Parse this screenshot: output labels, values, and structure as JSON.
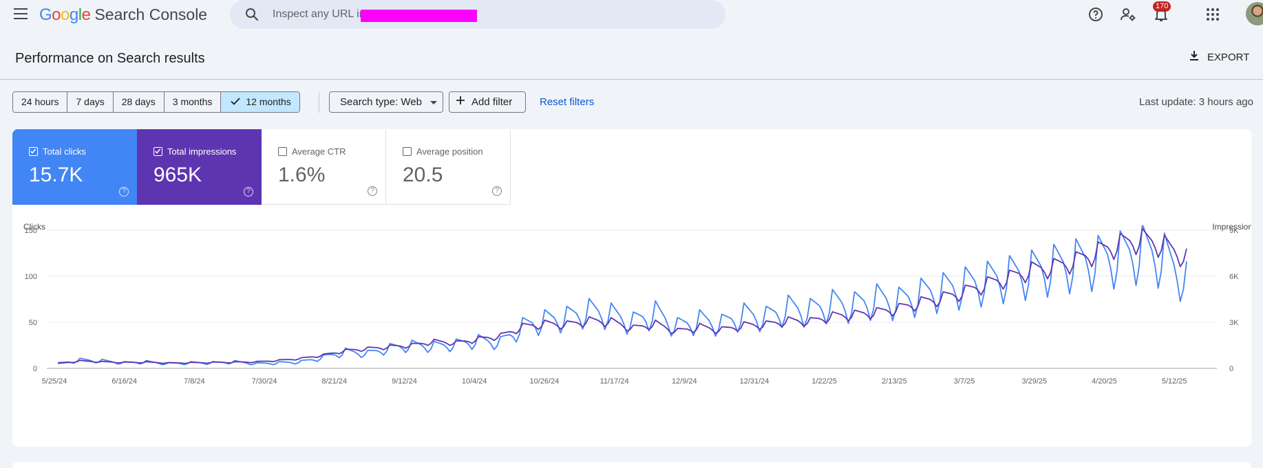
{
  "app": {
    "logo_google": "Google",
    "logo_product": "Search Console"
  },
  "search": {
    "placeholder": "Inspect any URL in"
  },
  "notifications": {
    "count": "170"
  },
  "icons": [
    "menu-icon",
    "search-icon",
    "help-icon",
    "manage-users-icon",
    "bell-icon",
    "apps-icon",
    "download-icon",
    "check-icon",
    "dropdown-arrow-icon",
    "plus-icon"
  ],
  "header": {
    "title": "Performance on Search results",
    "export_label": "EXPORT"
  },
  "filters": {
    "ranges": [
      "24 hours",
      "7 days",
      "28 days",
      "3 months",
      "12 months"
    ],
    "selected_range": "12 months",
    "search_type": "Search type: Web",
    "add_filter": "Add filter",
    "reset": "Reset filters",
    "last_update": "Last update: 3 hours ago"
  },
  "metrics": {
    "clicks": {
      "label": "Total clicks",
      "value": "15.7K",
      "checked": true,
      "color": "#4285f4"
    },
    "impressions": {
      "label": "Total impressions",
      "value": "965K",
      "checked": true,
      "color": "#5e35b1"
    },
    "ctr": {
      "label": "Average CTR",
      "value": "1.6%",
      "checked": false
    },
    "position": {
      "label": "Average position",
      "value": "20.5",
      "checked": false
    }
  },
  "chart_data": {
    "type": "line",
    "left_axis_label": "Clicks",
    "right_axis_label": "Impressions",
    "left_ylim": [
      0,
      150
    ],
    "right_ylim": [
      0,
      9000
    ],
    "left_ticks": [
      "0",
      "50",
      "100",
      "150"
    ],
    "right_ticks": [
      "0",
      "3K",
      "6K",
      "9K"
    ],
    "x_tick_labels": [
      "5/25/24",
      "6/16/24",
      "7/8/24",
      "7/30/24",
      "8/21/24",
      "9/12/24",
      "10/4/24",
      "10/26/24",
      "11/17/24",
      "12/9/24",
      "12/31/24",
      "1/22/25",
      "2/13/25",
      "3/7/25",
      "3/29/25",
      "4/20/25",
      "5/12/25"
    ],
    "grid": true,
    "series": [
      {
        "name": "Clicks",
        "color": "#4285f4",
        "axis": "left",
        "weekly_values": [
          5,
          9,
          8,
          6,
          7,
          5,
          6,
          6,
          7,
          5,
          6,
          7,
          12,
          18,
          16,
          22,
          25,
          24,
          26,
          30,
          28,
          45,
          52,
          55,
          62,
          58,
          50,
          60,
          45,
          52,
          48,
          58,
          55,
          65,
          62,
          70,
          68,
          75,
          72,
          80,
          85,
          90,
          95,
          100,
          105,
          110,
          115,
          118,
          122,
          128,
          120,
          95
        ]
      },
      {
        "name": "Impressions",
        "color": "#5e35b1",
        "axis": "right",
        "weekly_values": [
          300,
          480,
          420,
          380,
          400,
          350,
          360,
          380,
          400,
          420,
          520,
          640,
          860,
          1150,
          1280,
          1400,
          1500,
          1750,
          1650,
          1900,
          2100,
          2700,
          2900,
          2850,
          3100,
          3050,
          2600,
          2900,
          2400,
          2700,
          2500,
          2800,
          2850,
          3100,
          3050,
          3400,
          3500,
          3650,
          3900,
          4300,
          4600,
          5000,
          5500,
          5900,
          6400,
          6600,
          7000,
          7600,
          8100,
          8400,
          8000,
          7200
        ]
      }
    ]
  }
}
